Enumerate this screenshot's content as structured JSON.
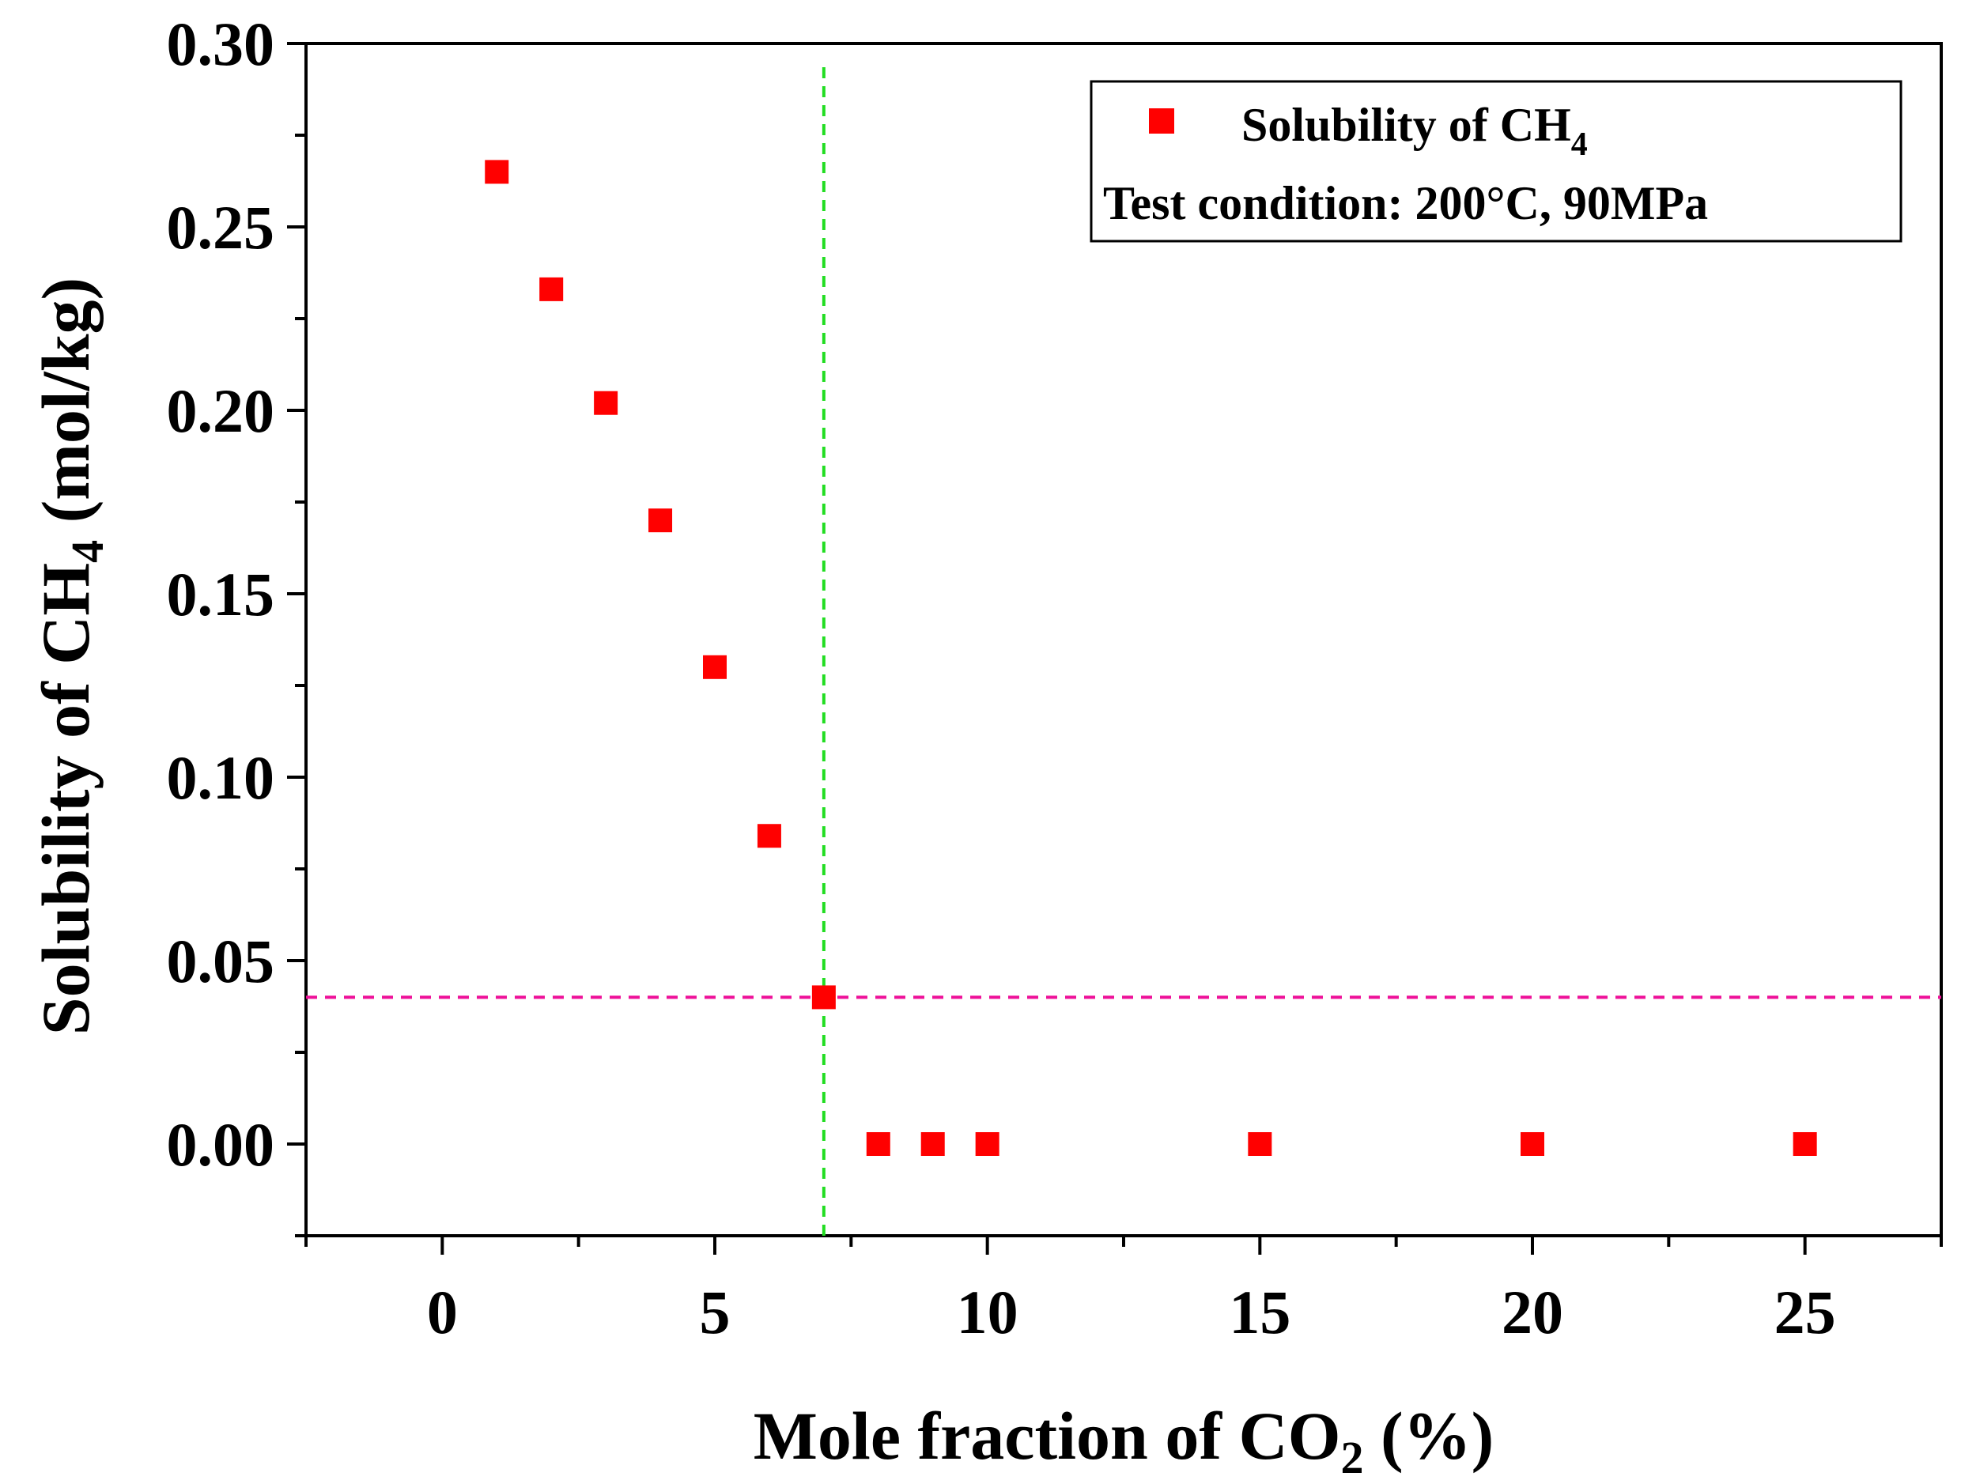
{
  "chart_data": {
    "type": "scatter",
    "title": "",
    "xlabel": {
      "main": "Mole fraction of CO",
      "sub": "2",
      "tail": " (%)"
    },
    "ylabel": {
      "main": "Solubility of CH",
      "sub": "4",
      "tail": " (mol/kg)"
    },
    "xlim": [
      -2.5,
      27.5
    ],
    "ylim": [
      -0.025,
      0.3
    ],
    "xticks": [
      0,
      5,
      10,
      15,
      20,
      25
    ],
    "xtick_labels": [
      "0",
      "5",
      "10",
      "15",
      "20",
      "25"
    ],
    "yticks": [
      0.0,
      0.05,
      0.1,
      0.15,
      0.2,
      0.25,
      0.3
    ],
    "ytick_labels": [
      "0.00",
      "0.05",
      "0.10",
      "0.15",
      "0.20",
      "0.25",
      "0.30"
    ],
    "series": [
      {
        "name": "Solubility of CH4",
        "marker": "square",
        "color": "#ff0000",
        "x": [
          1,
          2,
          3,
          4,
          5,
          6,
          7,
          8,
          9,
          10,
          15,
          20,
          25
        ],
        "y": [
          0.265,
          0.233,
          0.202,
          0.17,
          0.13,
          0.084,
          0.04,
          0.0,
          0.0,
          0.0,
          0.0,
          0.0,
          0.0
        ]
      }
    ],
    "reference_lines": [
      {
        "orientation": "vertical",
        "value": 7,
        "color": "#22dd22",
        "style": "dashed"
      },
      {
        "orientation": "horizontal",
        "value": 0.04,
        "color": "#ee1199",
        "style": "dashed"
      }
    ],
    "legend": {
      "position": "top-right",
      "entries": [
        {
          "label_main": "Solubility of CH",
          "label_sub": "4"
        }
      ],
      "note": "Test condition: 200°C, 90MPa"
    }
  }
}
